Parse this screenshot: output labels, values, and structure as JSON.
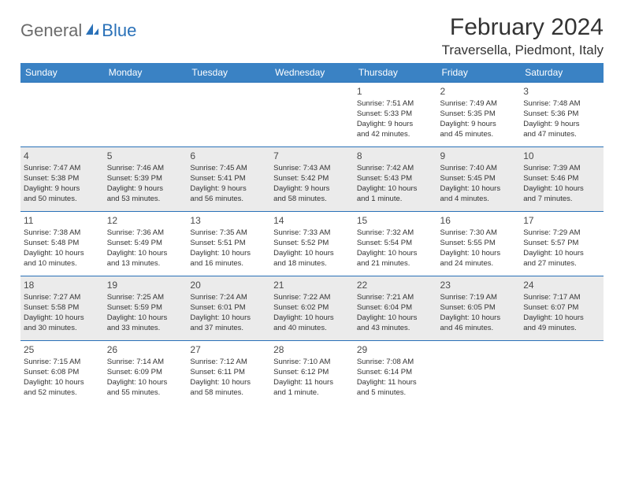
{
  "logo": {
    "part1": "General",
    "part2": "Blue"
  },
  "title": "February 2024",
  "location": "Traversella, Piedmont, Italy",
  "header_bg": "#3a82c4",
  "border_color": "#2a71b8",
  "shade_color": "#ebebeb",
  "day_headers": [
    "Sunday",
    "Monday",
    "Tuesday",
    "Wednesday",
    "Thursday",
    "Friday",
    "Saturday"
  ],
  "weeks": [
    {
      "shaded": false,
      "days": [
        null,
        null,
        null,
        null,
        {
          "n": "1",
          "sunrise": "Sunrise: 7:51 AM",
          "sunset": "Sunset: 5:33 PM",
          "d1": "Daylight: 9 hours",
          "d2": "and 42 minutes."
        },
        {
          "n": "2",
          "sunrise": "Sunrise: 7:49 AM",
          "sunset": "Sunset: 5:35 PM",
          "d1": "Daylight: 9 hours",
          "d2": "and 45 minutes."
        },
        {
          "n": "3",
          "sunrise": "Sunrise: 7:48 AM",
          "sunset": "Sunset: 5:36 PM",
          "d1": "Daylight: 9 hours",
          "d2": "and 47 minutes."
        }
      ]
    },
    {
      "shaded": true,
      "days": [
        {
          "n": "4",
          "sunrise": "Sunrise: 7:47 AM",
          "sunset": "Sunset: 5:38 PM",
          "d1": "Daylight: 9 hours",
          "d2": "and 50 minutes."
        },
        {
          "n": "5",
          "sunrise": "Sunrise: 7:46 AM",
          "sunset": "Sunset: 5:39 PM",
          "d1": "Daylight: 9 hours",
          "d2": "and 53 minutes."
        },
        {
          "n": "6",
          "sunrise": "Sunrise: 7:45 AM",
          "sunset": "Sunset: 5:41 PM",
          "d1": "Daylight: 9 hours",
          "d2": "and 56 minutes."
        },
        {
          "n": "7",
          "sunrise": "Sunrise: 7:43 AM",
          "sunset": "Sunset: 5:42 PM",
          "d1": "Daylight: 9 hours",
          "d2": "and 58 minutes."
        },
        {
          "n": "8",
          "sunrise": "Sunrise: 7:42 AM",
          "sunset": "Sunset: 5:43 PM",
          "d1": "Daylight: 10 hours",
          "d2": "and 1 minute."
        },
        {
          "n": "9",
          "sunrise": "Sunrise: 7:40 AM",
          "sunset": "Sunset: 5:45 PM",
          "d1": "Daylight: 10 hours",
          "d2": "and 4 minutes."
        },
        {
          "n": "10",
          "sunrise": "Sunrise: 7:39 AM",
          "sunset": "Sunset: 5:46 PM",
          "d1": "Daylight: 10 hours",
          "d2": "and 7 minutes."
        }
      ]
    },
    {
      "shaded": false,
      "days": [
        {
          "n": "11",
          "sunrise": "Sunrise: 7:38 AM",
          "sunset": "Sunset: 5:48 PM",
          "d1": "Daylight: 10 hours",
          "d2": "and 10 minutes."
        },
        {
          "n": "12",
          "sunrise": "Sunrise: 7:36 AM",
          "sunset": "Sunset: 5:49 PM",
          "d1": "Daylight: 10 hours",
          "d2": "and 13 minutes."
        },
        {
          "n": "13",
          "sunrise": "Sunrise: 7:35 AM",
          "sunset": "Sunset: 5:51 PM",
          "d1": "Daylight: 10 hours",
          "d2": "and 16 minutes."
        },
        {
          "n": "14",
          "sunrise": "Sunrise: 7:33 AM",
          "sunset": "Sunset: 5:52 PM",
          "d1": "Daylight: 10 hours",
          "d2": "and 18 minutes."
        },
        {
          "n": "15",
          "sunrise": "Sunrise: 7:32 AM",
          "sunset": "Sunset: 5:54 PM",
          "d1": "Daylight: 10 hours",
          "d2": "and 21 minutes."
        },
        {
          "n": "16",
          "sunrise": "Sunrise: 7:30 AM",
          "sunset": "Sunset: 5:55 PM",
          "d1": "Daylight: 10 hours",
          "d2": "and 24 minutes."
        },
        {
          "n": "17",
          "sunrise": "Sunrise: 7:29 AM",
          "sunset": "Sunset: 5:57 PM",
          "d1": "Daylight: 10 hours",
          "d2": "and 27 minutes."
        }
      ]
    },
    {
      "shaded": true,
      "days": [
        {
          "n": "18",
          "sunrise": "Sunrise: 7:27 AM",
          "sunset": "Sunset: 5:58 PM",
          "d1": "Daylight: 10 hours",
          "d2": "and 30 minutes."
        },
        {
          "n": "19",
          "sunrise": "Sunrise: 7:25 AM",
          "sunset": "Sunset: 5:59 PM",
          "d1": "Daylight: 10 hours",
          "d2": "and 33 minutes."
        },
        {
          "n": "20",
          "sunrise": "Sunrise: 7:24 AM",
          "sunset": "Sunset: 6:01 PM",
          "d1": "Daylight: 10 hours",
          "d2": "and 37 minutes."
        },
        {
          "n": "21",
          "sunrise": "Sunrise: 7:22 AM",
          "sunset": "Sunset: 6:02 PM",
          "d1": "Daylight: 10 hours",
          "d2": "and 40 minutes."
        },
        {
          "n": "22",
          "sunrise": "Sunrise: 7:21 AM",
          "sunset": "Sunset: 6:04 PM",
          "d1": "Daylight: 10 hours",
          "d2": "and 43 minutes."
        },
        {
          "n": "23",
          "sunrise": "Sunrise: 7:19 AM",
          "sunset": "Sunset: 6:05 PM",
          "d1": "Daylight: 10 hours",
          "d2": "and 46 minutes."
        },
        {
          "n": "24",
          "sunrise": "Sunrise: 7:17 AM",
          "sunset": "Sunset: 6:07 PM",
          "d1": "Daylight: 10 hours",
          "d2": "and 49 minutes."
        }
      ]
    },
    {
      "shaded": false,
      "days": [
        {
          "n": "25",
          "sunrise": "Sunrise: 7:15 AM",
          "sunset": "Sunset: 6:08 PM",
          "d1": "Daylight: 10 hours",
          "d2": "and 52 minutes."
        },
        {
          "n": "26",
          "sunrise": "Sunrise: 7:14 AM",
          "sunset": "Sunset: 6:09 PM",
          "d1": "Daylight: 10 hours",
          "d2": "and 55 minutes."
        },
        {
          "n": "27",
          "sunrise": "Sunrise: 7:12 AM",
          "sunset": "Sunset: 6:11 PM",
          "d1": "Daylight: 10 hours",
          "d2": "and 58 minutes."
        },
        {
          "n": "28",
          "sunrise": "Sunrise: 7:10 AM",
          "sunset": "Sunset: 6:12 PM",
          "d1": "Daylight: 11 hours",
          "d2": "and 1 minute."
        },
        {
          "n": "29",
          "sunrise": "Sunrise: 7:08 AM",
          "sunset": "Sunset: 6:14 PM",
          "d1": "Daylight: 11 hours",
          "d2": "and 5 minutes."
        },
        null,
        null
      ]
    }
  ]
}
